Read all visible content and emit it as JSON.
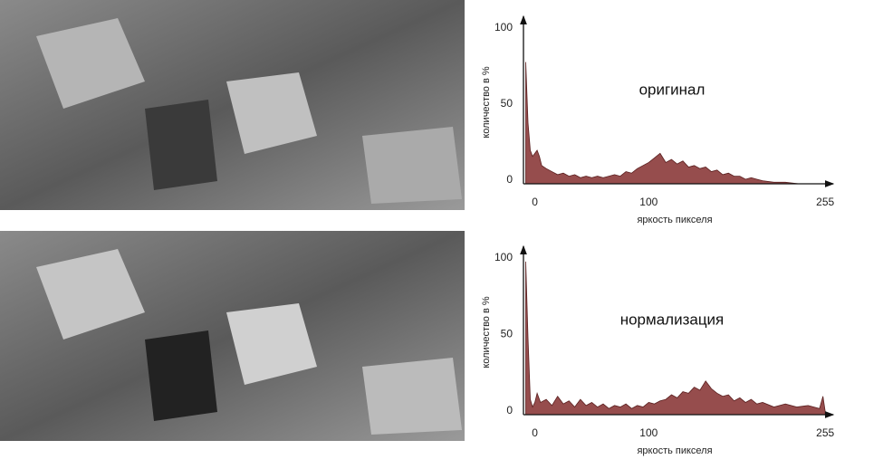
{
  "chart_data": [
    {
      "type": "area",
      "annotation": "оригинал",
      "xlabel": "яркость пикселя",
      "ylabel": "количество в %",
      "color": "#8b3a3a",
      "xlim": [
        -10,
        262
      ],
      "ylim": [
        0,
        110
      ],
      "xticks": [
        0,
        100,
        255
      ],
      "yticks": [
        0,
        50,
        100
      ],
      "x": [
        -8,
        -6,
        -4,
        -2,
        0,
        2,
        4,
        6,
        10,
        15,
        20,
        25,
        30,
        35,
        40,
        45,
        50,
        55,
        60,
        65,
        70,
        75,
        80,
        85,
        90,
        95,
        100,
        105,
        110,
        115,
        120,
        125,
        130,
        135,
        140,
        145,
        150,
        155,
        160,
        165,
        170,
        175,
        180,
        185,
        190,
        195,
        200,
        210,
        220,
        232
      ],
      "values": [
        80,
        40,
        22,
        18,
        20,
        22,
        18,
        12,
        10,
        8,
        6,
        7,
        5,
        6,
        4,
        5,
        4,
        5,
        4,
        5,
        6,
        5,
        8,
        7,
        10,
        12,
        14,
        17,
        20,
        14,
        16,
        13,
        15,
        11,
        12,
        10,
        11,
        8,
        9,
        6,
        7,
        5,
        5,
        3,
        4,
        3,
        2,
        1,
        1,
        0
      ]
    },
    {
      "type": "area",
      "annotation": "нормализация",
      "xlabel": "яркость пикселя",
      "ylabel": "количество в %",
      "color": "#8b3a3a",
      "xlim": [
        -10,
        262
      ],
      "ylim": [
        0,
        110
      ],
      "xticks": [
        0,
        100,
        255
      ],
      "yticks": [
        0,
        50,
        100
      ],
      "x": [
        -8,
        -6,
        -4,
        -2,
        0,
        2,
        5,
        10,
        15,
        20,
        25,
        30,
        35,
        40,
        45,
        50,
        55,
        60,
        65,
        70,
        75,
        80,
        85,
        90,
        95,
        100,
        105,
        110,
        115,
        120,
        125,
        130,
        135,
        140,
        145,
        150,
        155,
        160,
        165,
        170,
        175,
        180,
        185,
        190,
        195,
        200,
        210,
        220,
        230,
        240,
        250,
        253,
        255
      ],
      "values": [
        100,
        50,
        10,
        5,
        8,
        14,
        8,
        10,
        6,
        12,
        7,
        9,
        5,
        10,
        6,
        8,
        5,
        7,
        4,
        6,
        5,
        7,
        4,
        6,
        5,
        8,
        7,
        9,
        10,
        13,
        11,
        15,
        14,
        18,
        16,
        22,
        17,
        14,
        12,
        13,
        9,
        11,
        8,
        10,
        7,
        8,
        5,
        7,
        5,
        6,
        4,
        12,
        2
      ]
    }
  ]
}
